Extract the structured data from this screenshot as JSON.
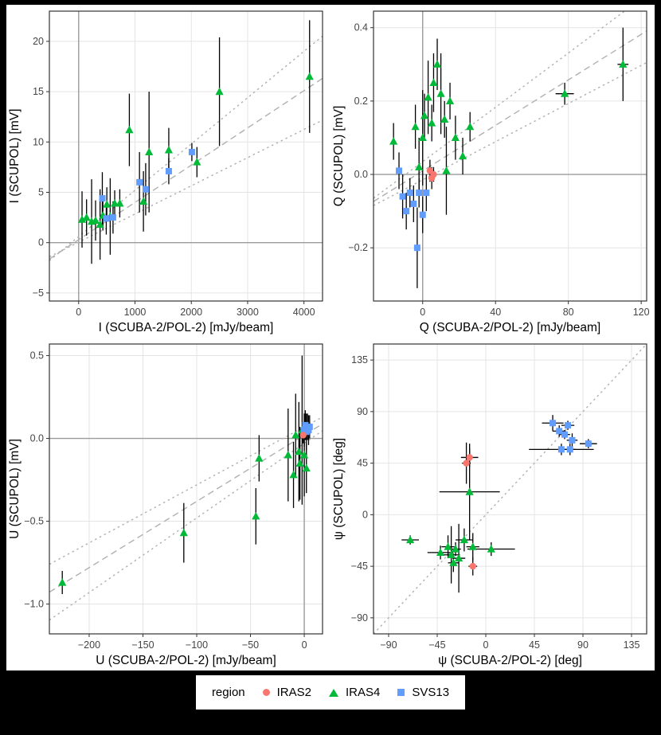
{
  "figure": {
    "background": "#000000",
    "panel_background": "#ffffff",
    "grid_color": "#e4e4e4",
    "zero_line_color": "#9b9b9b",
    "fit_line_color": "#b0b0b0"
  },
  "legend": {
    "title": "region",
    "items": [
      {
        "label": "IRAS2",
        "color": "#F8766D",
        "shape": "circle"
      },
      {
        "label": "IRAS4",
        "color": "#00BA38",
        "shape": "triangle"
      },
      {
        "label": "SVS13",
        "color": "#619CFF",
        "shape": "square"
      }
    ]
  },
  "chart_data": [
    {
      "type": "scatter",
      "xlabel": "I (SCUBA-2/POL-2) [mJy/beam]",
      "ylabel": "I (SCUPOL) [mV]",
      "xlim": [
        -520,
        4330
      ],
      "ylim": [
        -5.8,
        23.0
      ],
      "xticks": [
        0,
        1000,
        2000,
        3000,
        4000
      ],
      "xtick_labels": [
        "0",
        "1000",
        "2000",
        "3000",
        "4000"
      ],
      "yticks": [
        -5,
        0,
        5,
        10,
        15,
        20
      ],
      "ytick_labels": [
        "−5",
        "0",
        "5",
        "10",
        "15",
        "20"
      ],
      "zero": {
        "v": true,
        "h": true
      },
      "lines": [
        {
          "style": "dashed",
          "pts": [
            [
              -520,
              -1.63
            ],
            [
              4330,
              16.32
            ]
          ]
        },
        {
          "style": "dotted",
          "pts": [
            [
              -520,
              -1.79
            ],
            [
              4330,
              20.52
            ]
          ]
        },
        {
          "style": "dotted",
          "pts": [
            [
              -520,
              -1.41
            ],
            [
              4330,
              12.17
            ]
          ]
        }
      ],
      "series": [
        {
          "name": "IRAS4",
          "color": "#00BA38",
          "shape": "triangle",
          "points": [
            [
              60,
              2.3,
              0,
              2.8
            ],
            [
              140,
              2.5,
              0,
              1.8
            ],
            [
              230,
              2.1,
              0,
              4.2
            ],
            [
              300,
              2.2,
              0,
              2.0
            ],
            [
              380,
              1.8,
              0,
              3.5
            ],
            [
              430,
              2.7,
              0,
              1.5
            ],
            [
              500,
              3.8,
              0,
              1.7
            ],
            [
              560,
              2.6,
              0,
              3.8
            ],
            [
              640,
              3.9,
              0,
              1.3
            ],
            [
              730,
              3.9,
              0,
              1.4
            ],
            [
              900,
              11.2,
              0,
              3.6
            ],
            [
              1150,
              4.1,
              0,
              3.0
            ],
            [
              1250,
              9.0,
              0,
              6.0
            ],
            [
              1600,
              9.2,
              0,
              2.2
            ],
            [
              2100,
              8.0,
              0,
              1.5
            ],
            [
              2500,
              15.0,
              0,
              5.4
            ],
            [
              4100,
              16.5,
              0,
              5.6
            ]
          ]
        },
        {
          "name": "SVS13",
          "color": "#619CFF",
          "shape": "square",
          "points": [
            [
              420,
              4.4,
              0,
              2.6
            ],
            [
              490,
              2.4,
              0,
              1.6
            ],
            [
              610,
              2.5,
              0,
              1.6
            ],
            [
              1080,
              6.0,
              0,
              3.0
            ],
            [
              1190,
              5.3,
              0,
              2.6
            ],
            [
              1600,
              7.1,
              0,
              1.3
            ],
            [
              2010,
              9.0,
              0,
              0.9
            ]
          ]
        }
      ]
    },
    {
      "type": "scatter",
      "xlabel": "Q (SCUBA-2/POL-2) [mJy/beam]",
      "ylabel": "Q (SCUPOL) [mV]",
      "xlim": [
        -27,
        123
      ],
      "ylim": [
        -0.345,
        0.445
      ],
      "xticks": [
        0,
        40,
        80,
        120
      ],
      "xtick_labels": [
        "0",
        "40",
        "80",
        "120"
      ],
      "yticks": [
        -0.2,
        0.0,
        0.2,
        0.4
      ],
      "ytick_labels": [
        "−0.2",
        "0.0",
        "0.2",
        "0.4"
      ],
      "zero": {
        "v": true,
        "h": true
      },
      "lines": [
        {
          "style": "dashed",
          "pts": [
            [
              -27,
              -0.074
            ],
            [
              123,
              0.391
            ]
          ]
        },
        {
          "style": "dotted",
          "pts": [
            [
              -27,
              -0.065
            ],
            [
              123,
              0.49
            ]
          ]
        },
        {
          "style": "dotted",
          "pts": [
            [
              -27,
              -0.085
            ],
            [
              123,
              0.305
            ]
          ]
        }
      ],
      "series": [
        {
          "name": "IRAS4",
          "color": "#00BA38",
          "shape": "triangle",
          "points": [
            [
              -16,
              0.09,
              0,
              0.05
            ],
            [
              -4,
              0.13,
              0,
              0.06
            ],
            [
              -2,
              0.02,
              0,
              0.08
            ],
            [
              0,
              0.1,
              0,
              0.13
            ],
            [
              1,
              0.16,
              0,
              0.06
            ],
            [
              3,
              0.21,
              0,
              0.1
            ],
            [
              5,
              0.14,
              0,
              0.05
            ],
            [
              6,
              0.25,
              0,
              0.08
            ],
            [
              8,
              0.3,
              0,
              0.07
            ],
            [
              10,
              0.22,
              0,
              0.11
            ],
            [
              12,
              0.15,
              0,
              0.05
            ],
            [
              13,
              0.01,
              0,
              0.12
            ],
            [
              15,
              0.2,
              0,
              0.05
            ],
            [
              18,
              0.1,
              0,
              0.06
            ],
            [
              22,
              0.05,
              0,
              0.05
            ],
            [
              26,
              0.13,
              0,
              0.04
            ],
            [
              78,
              0.22,
              5,
              0.03
            ],
            [
              110,
              0.3,
              3,
              0.1
            ]
          ]
        },
        {
          "name": "SVS13",
          "color": "#619CFF",
          "shape": "square",
          "points": [
            [
              -13,
              0.01,
              0,
              0.05
            ],
            [
              -11,
              -0.06,
              0,
              0.06
            ],
            [
              -9,
              -0.1,
              0,
              0.05
            ],
            [
              -7,
              -0.05,
              0,
              0.04
            ],
            [
              -5,
              -0.08,
              0,
              0.05
            ],
            [
              -3,
              -0.2,
              0,
              0.11
            ],
            [
              -2,
              -0.05,
              0,
              0.04
            ],
            [
              0,
              -0.11,
              0,
              0.05
            ],
            [
              2,
              -0.05,
              0,
              0.05
            ]
          ]
        },
        {
          "name": "IRAS2",
          "color": "#F8766D",
          "shape": "circle",
          "points": [
            [
              4,
              0.01,
              0,
              0.03
            ],
            [
              5,
              -0.01,
              0,
              0.03
            ],
            [
              6,
              0.0,
              0,
              0.02
            ]
          ]
        }
      ]
    },
    {
      "type": "scatter",
      "xlabel": "U (SCUBA-2/POL-2) [mJy/beam]",
      "ylabel": "U (SCUPOL) [mV]",
      "xlim": [
        -237,
        17
      ],
      "ylim": [
        -1.18,
        0.57
      ],
      "xticks": [
        -200,
        -150,
        -100,
        -50,
        0
      ],
      "xtick_labels": [
        "−200",
        "−150",
        "−100",
        "−50",
        "0"
      ],
      "yticks": [
        -1.0,
        -0.5,
        0.0,
        0.5
      ],
      "ytick_labels": [
        "−1.0",
        "−0.5",
        "0.0",
        "0.5"
      ],
      "zero": {
        "v": true,
        "h": true
      },
      "lines": [
        {
          "style": "dashed",
          "pts": [
            [
              -237,
              -0.928
            ],
            [
              17,
              0.088
            ]
          ]
        },
        {
          "style": "dotted",
          "pts": [
            [
              -237,
              -0.76
            ],
            [
              17,
              0.129
            ]
          ]
        },
        {
          "style": "dotted",
          "pts": [
            [
              -237,
              -1.097
            ],
            [
              17,
              0.047
            ]
          ]
        }
      ],
      "series": [
        {
          "name": "IRAS4",
          "color": "#00BA38",
          "shape": "triangle",
          "points": [
            [
              -225,
              -0.87,
              0,
              0.07
            ],
            [
              -112,
              -0.57,
              0,
              0.18
            ],
            [
              -45,
              -0.47,
              0,
              0.17
            ],
            [
              -42,
              -0.12,
              0,
              0.14
            ],
            [
              -15,
              -0.1,
              0,
              0.28
            ],
            [
              -10,
              -0.22,
              0,
              0.2
            ],
            [
              -8,
              0.02,
              0,
              0.25
            ],
            [
              -5,
              -0.08,
              0,
              0.3
            ],
            [
              -4,
              -0.15,
              0,
              0.22
            ],
            [
              -2,
              0.05,
              0,
              0.45
            ],
            [
              0,
              -0.1,
              0,
              0.25
            ],
            [
              2,
              -0.18,
              0,
              0.15
            ]
          ]
        },
        {
          "name": "SVS13",
          "color": "#619CFF",
          "shape": "square",
          "points": [
            [
              0,
              0.05,
              0,
              0.1
            ],
            [
              1,
              0.08,
              0,
              0.09
            ],
            [
              2,
              0.04,
              0,
              0.11
            ],
            [
              3,
              0.07,
              0,
              0.08
            ],
            [
              4,
              0.05,
              0,
              0.09
            ],
            [
              5,
              0.07,
              0,
              0.07
            ]
          ]
        },
        {
          "name": "IRAS2",
          "color": "#F8766D",
          "shape": "circle",
          "points": [
            [
              -1,
              0.02,
              0,
              0.05
            ]
          ]
        }
      ]
    },
    {
      "type": "scatter",
      "xlabel": "ψ (SCUBA-2/POL-2) [deg]",
      "ylabel": "ψ (SCUPOL) [deg]",
      "xlim": [
        -104,
        149
      ],
      "ylim": [
        -104,
        149
      ],
      "xticks": [
        -90,
        -45,
        0,
        45,
        90,
        135
      ],
      "xtick_labels": [
        "−90",
        "−45",
        "0",
        "45",
        "90",
        "135"
      ],
      "yticks": [
        -90,
        -45,
        0,
        45,
        90,
        135
      ],
      "ytick_labels": [
        "−90",
        "−45",
        "0",
        "45",
        "90",
        "135"
      ],
      "zero": {
        "v": false,
        "h": false
      },
      "lines": [
        {
          "style": "dotted",
          "pts": [
            [
              -104,
              -104
            ],
            [
              149,
              149
            ]
          ]
        }
      ],
      "series": [
        {
          "name": "IRAS4",
          "color": "#00BA38",
          "shape": "triangle",
          "points": [
            [
              -70,
              -22,
              8,
              4
            ],
            [
              -42,
              -33,
              12,
              6
            ],
            [
              -35,
              -28,
              6,
              10
            ],
            [
              -32,
              -35,
              8,
              25
            ],
            [
              -28,
              -30,
              5,
              6
            ],
            [
              -25,
              -38,
              6,
              30
            ],
            [
              -20,
              -22,
              8,
              10
            ],
            [
              -15,
              20,
              28,
              42
            ],
            [
              -12,
              -28,
              6,
              12
            ],
            [
              5,
              -30,
              22,
              6
            ],
            [
              -30,
              -42,
              5,
              8
            ]
          ]
        },
        {
          "name": "SVS13",
          "color": "#619CFF",
          "shape": "square",
          "points": [
            [
              62,
              80,
              10,
              7
            ],
            [
              68,
              73,
              6,
              5
            ],
            [
              73,
              70,
              5,
              4
            ],
            [
              76,
              78,
              6,
              4
            ],
            [
              80,
              65,
              5,
              6
            ],
            [
              70,
              57,
              30,
              5
            ],
            [
              95,
              62,
              8,
              4
            ],
            [
              78,
              57,
              5,
              5
            ]
          ]
        },
        {
          "name": "IRAS2",
          "color": "#F8766D",
          "shape": "circle",
          "points": [
            [
              -15,
              50,
              8,
              8
            ],
            [
              -18,
              45,
              4,
              18
            ],
            [
              -12,
              -45,
              4,
              8
            ]
          ]
        }
      ]
    }
  ]
}
